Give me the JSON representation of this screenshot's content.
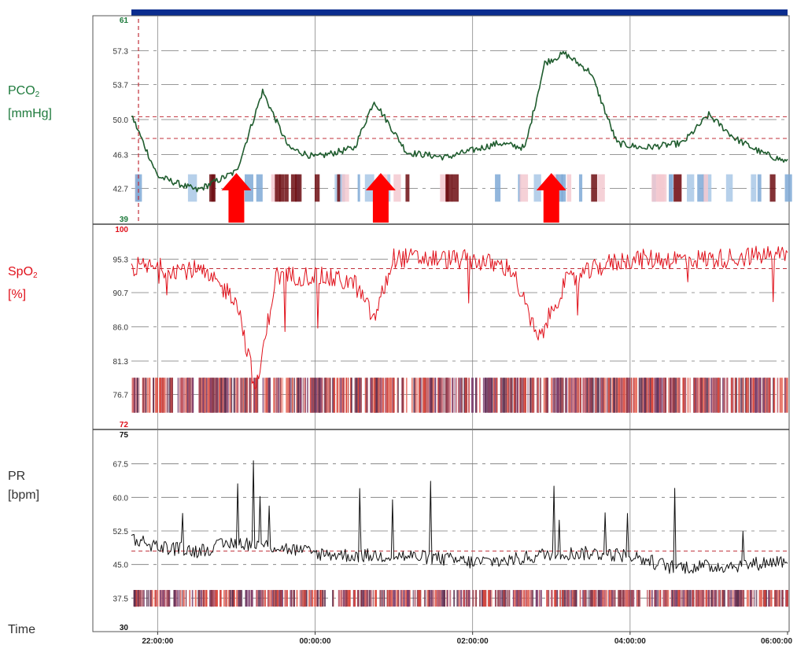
{
  "labels": {
    "pco2_name": "PCO",
    "pco2_sub": "2",
    "pco2_unit": "[mmHg]",
    "spo2_name": "SpO",
    "spo2_sub": "2",
    "spo2_unit": "[%]",
    "pr_name": "PR",
    "pr_unit": "[bpm]",
    "time": "Time"
  },
  "colors": {
    "pco2": "#1e7a3c",
    "pco2_trace": "#1f5c2e",
    "spo2": "#e0101a",
    "pr": "#111111",
    "threshold": "#c0303a",
    "top_bar": "#0b2d8f",
    "arrow": "#ff0000"
  },
  "chart_data": [
    {
      "type": "line",
      "series": [
        {
          "name": "PCO2",
          "x": [
            "21:40:00",
            "22:00:00",
            "22:30:00",
            "23:00:00",
            "23:20:00",
            "23:40:00",
            "00:00:00",
            "00:30:00",
            "00:45:00",
            "01:10:00",
            "01:40:00",
            "02:20:00",
            "02:40:00",
            "02:55:00",
            "03:10:00",
            "03:30:00",
            "03:50:00",
            "04:10:00",
            "04:40:00",
            "05:00:00",
            "05:20:00",
            "05:40:00",
            "06:00:00"
          ],
          "values": [
            50.5,
            44.0,
            42.5,
            44.5,
            53.0,
            47.0,
            46.0,
            47.0,
            52.0,
            46.5,
            46.0,
            47.5,
            47.0,
            56.0,
            57.0,
            55.0,
            47.5,
            47.0,
            47.5,
            50.5,
            48.0,
            46.5,
            45.5
          ]
        }
      ],
      "ylim": [
        39,
        61
      ],
      "yticks": [
        42.7,
        46.3,
        50.0,
        53.7,
        57.3
      ],
      "ytick_labels": [
        "42.7",
        "46.3",
        "50.0",
        "53.7",
        "57.3"
      ],
      "ymin_label": "39",
      "ymax_label": "61",
      "thresholds": [
        50.3,
        48.0
      ],
      "xlim": [
        "21:40:00",
        "06:00:00"
      ],
      "grid": true,
      "event_arrows": [
        "23:00:00",
        "00:50:00",
        "03:00:00"
      ]
    },
    {
      "type": "line",
      "series": [
        {
          "name": "SpO2",
          "x": [
            "21:40:00",
            "22:30:00",
            "23:00:00",
            "23:15:00",
            "23:30:00",
            "00:00:00",
            "00:30:00",
            "00:45:00",
            "01:00:00",
            "02:00:00",
            "02:30:00",
            "02:50:00",
            "03:10:00",
            "03:40:00",
            "04:00:00",
            "05:00:00",
            "05:40:00",
            "06:00:00"
          ],
          "values": [
            94.3,
            93.8,
            90.0,
            77.0,
            93.0,
            93.0,
            92.0,
            87.0,
            95.5,
            95.2,
            94.0,
            84.0,
            92.0,
            94.5,
            95.3,
            95.3,
            95.8,
            96.0
          ]
        }
      ],
      "ylim": [
        72,
        100
      ],
      "yticks": [
        76.7,
        81.3,
        86.0,
        90.7,
        95.3
      ],
      "ytick_labels": [
        "76.7",
        "81.3",
        "86.0",
        "90.7",
        "95.3"
      ],
      "ymin_label": "72",
      "ymax_label": "100",
      "thresholds": [
        94.0
      ],
      "xlim": [
        "21:40:00",
        "06:00:00"
      ],
      "grid": true
    },
    {
      "type": "line",
      "series": [
        {
          "name": "PR",
          "x": [
            "21:40:00",
            "22:00:00",
            "22:30:00",
            "23:00:00",
            "23:30:00",
            "00:00:00",
            "00:30:00",
            "01:00:00",
            "01:30:00",
            "02:00:00",
            "02:30:00",
            "03:00:00",
            "03:30:00",
            "04:00:00",
            "04:30:00",
            "05:00:00",
            "05:30:00",
            "06:00:00"
          ],
          "values": [
            51.0,
            49.0,
            48.0,
            50.0,
            49.0,
            47.5,
            47.0,
            47.0,
            46.5,
            45.5,
            46.0,
            47.5,
            47.5,
            47.0,
            44.5,
            44.5,
            45.0,
            46.0
          ]
        }
      ],
      "ylim": [
        30,
        75
      ],
      "yticks": [
        37.5,
        45.0,
        52.5,
        60.0,
        67.5
      ],
      "ytick_labels": [
        "37.5",
        "45.0",
        "52.5",
        "60.0",
        "67.5"
      ],
      "ymin_label": "30",
      "ymax_label": "75",
      "thresholds": [
        48.0
      ],
      "xlim": [
        "21:40:00",
        "06:00:00"
      ],
      "xticks": [
        "22:00:00",
        "00:00:00",
        "02:00:00",
        "04:00:00",
        "06:00:00"
      ],
      "xtick_labels": [
        "22:00:00",
        "00:00:00",
        "02:00:00",
        "04:00:00",
        "06:00:00"
      ],
      "grid": true
    }
  ]
}
